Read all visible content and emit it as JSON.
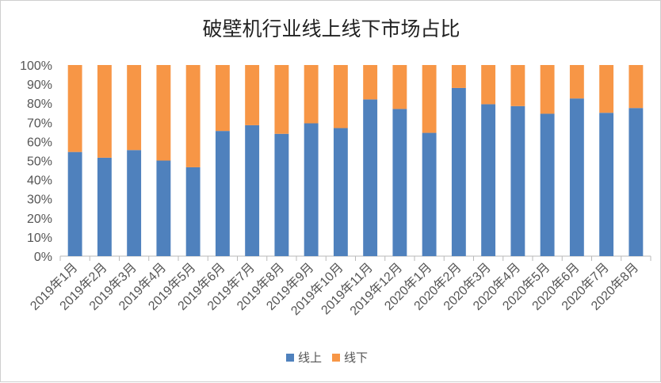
{
  "chart_data": {
    "type": "bar",
    "stacked": true,
    "percent": true,
    "title": "破壁机行业线上线下市场占比",
    "categories": [
      "2019年1月",
      "2019年2月",
      "2019年3月",
      "2019年4月",
      "2019年5月",
      "2019年6月",
      "2019年7月",
      "2019年8月",
      "2019年9月",
      "2019年10月",
      "2019年11月",
      "2019年12月",
      "2020年1月",
      "2020年2月",
      "2020年3月",
      "2020年4月",
      "2020年5月",
      "2020年6月",
      "2020年7月",
      "2020年8月"
    ],
    "series": [
      {
        "name": "线上",
        "color": "#4f81bd",
        "values": [
          54.5,
          51.5,
          55.5,
          50,
          46.5,
          65.5,
          68.5,
          64,
          69.5,
          67,
          82,
          77,
          64.5,
          88,
          79.5,
          78.5,
          74.5,
          82.5,
          75,
          77.5
        ]
      },
      {
        "name": "线下",
        "color": "#f79646",
        "values": [
          45.5,
          48.5,
          44.5,
          50,
          53.5,
          34.5,
          31.5,
          36,
          30.5,
          33,
          18,
          23,
          35.5,
          12,
          20.5,
          21.5,
          25.5,
          17.5,
          25,
          22.5
        ]
      }
    ],
    "ylim": [
      0,
      100
    ],
    "yticks": [
      "0%",
      "10%",
      "20%",
      "30%",
      "40%",
      "50%",
      "60%",
      "70%",
      "80%",
      "90%",
      "100%"
    ],
    "grid": false,
    "legend_position": "bottom"
  }
}
